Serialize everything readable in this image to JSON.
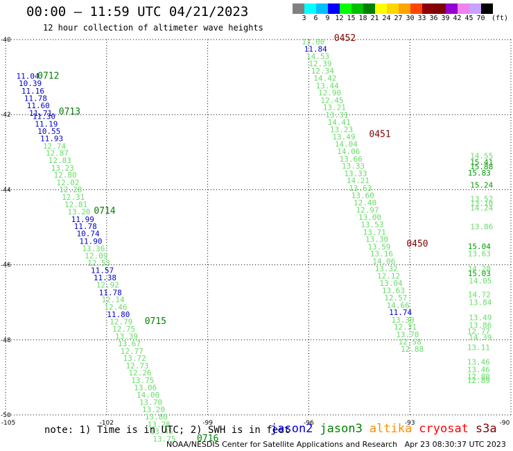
{
  "header": {
    "title": "00:00 — 11:59 UTC 04/21/2023",
    "subtitle": "12 hour collection of altimeter wave heights"
  },
  "colorbar": {
    "labels": [
      "3",
      "6",
      "9",
      "12",
      "15",
      "18",
      "21",
      "24",
      "27",
      "30",
      "33",
      "36",
      "39",
      "42",
      "45",
      "70"
    ],
    "colors": [
      "#808080",
      "#00ffff",
      "#00bfff",
      "#0000ff",
      "#00ff00",
      "#00c000",
      "#008000",
      "#ffff00",
      "#ffd700",
      "#ffa500",
      "#ff4500",
      "#8b0000",
      "#800000",
      "#9400d3",
      "#ee82ee",
      "#c8a2ff",
      "#000000"
    ],
    "unit": "(ft)"
  },
  "footer": {
    "note": "note: 1) Time is in UTC; 2) SWH is in feet",
    "legend": [
      {
        "label": "jason2",
        "color": "#0000cc"
      },
      {
        "label": "jason3",
        "color": "#008000"
      },
      {
        "label": "altika",
        "color": "#ff8c00"
      },
      {
        "label": "cryosat",
        "color": "#ff0000"
      },
      {
        "label": "s3a",
        "color": "#800000"
      }
    ],
    "credit": "NOAA/NESDIS Center for Satellite Applications and Research   Apr 23 08:30:37 UTC 2023"
  },
  "chart_data": {
    "type": "scatter",
    "xlim": [
      -105,
      -90
    ],
    "ylim": [
      -50,
      -40
    ],
    "x_ticks": [
      "-105",
      "-102",
      "-99",
      "-96",
      "-93",
      "-90"
    ],
    "y_ticks": [
      "-40",
      "-42",
      "-44",
      "-46",
      "-48",
      "-50"
    ],
    "grid": true,
    "series": [
      {
        "name": "jason3",
        "points": [
          {
            "x": -104.68,
            "y": -41.04,
            "v": "11.04",
            "c": "#0000cc"
          },
          {
            "x": -104.61,
            "y": -41.24,
            "v": "10.39",
            "c": "#0000cc"
          },
          {
            "x": -104.53,
            "y": -41.44,
            "v": "11.16",
            "c": "#0000cc"
          },
          {
            "x": -104.45,
            "y": -41.64,
            "v": "11.78",
            "c": "#0000cc"
          },
          {
            "x": -104.37,
            "y": -41.83,
            "v": "11.60",
            "c": "#0000cc"
          },
          {
            "x": -104.3,
            "y": -42.03,
            "v": "11.71",
            "c": "#0000cc"
          },
          {
            "x": -104.2,
            "y": -42.12,
            "v": "11.30",
            "c": "#0000cc"
          },
          {
            "x": -104.13,
            "y": -42.32,
            "v": "11.19",
            "c": "#0000cc"
          },
          {
            "x": -104.05,
            "y": -42.51,
            "v": "10.55",
            "c": "#0000cc"
          },
          {
            "x": -103.97,
            "y": -42.71,
            "v": "11.93",
            "c": "#0000cc"
          },
          {
            "x": -103.89,
            "y": -42.91,
            "v": "12.74",
            "c": "#66dd66"
          },
          {
            "x": -103.81,
            "y": -43.1,
            "v": "12.87",
            "c": "#66dd66"
          },
          {
            "x": -103.73,
            "y": -43.29,
            "v": "12.83",
            "c": "#66dd66"
          },
          {
            "x": -103.65,
            "y": -43.49,
            "v": "13.23",
            "c": "#66dd66"
          },
          {
            "x": -103.57,
            "y": -43.68,
            "v": "12.80",
            "c": "#66dd66"
          },
          {
            "x": -103.49,
            "y": -43.88,
            "v": "12.02",
            "c": "#66dd66"
          },
          {
            "x": -103.41,
            "y": -44.07,
            "v": "12.28",
            "c": "#66dd66"
          },
          {
            "x": -103.33,
            "y": -44.27,
            "v": "12.31",
            "c": "#66dd66"
          },
          {
            "x": -103.25,
            "y": -44.46,
            "v": "12.81",
            "c": "#66dd66"
          },
          {
            "x": -103.16,
            "y": -44.66,
            "v": "13.20",
            "c": "#66dd66"
          },
          {
            "x": -103.05,
            "y": -44.86,
            "v": "11.99",
            "c": "#0000cc"
          },
          {
            "x": -102.97,
            "y": -45.05,
            "v": "11.78",
            "c": "#0000cc"
          },
          {
            "x": -102.89,
            "y": -45.24,
            "v": "10.74",
            "c": "#0000cc"
          },
          {
            "x": -102.81,
            "y": -45.44,
            "v": "11.90",
            "c": "#0000cc"
          },
          {
            "x": -102.73,
            "y": -45.64,
            "v": "13.36",
            "c": "#66dd66"
          },
          {
            "x": -102.65,
            "y": -45.83,
            "v": "12.09",
            "c": "#66dd66"
          },
          {
            "x": -102.57,
            "y": -46.03,
            "v": "12.53",
            "c": "#66dd66"
          },
          {
            "x": -102.47,
            "y": -46.22,
            "v": "11.57",
            "c": "#0000cc"
          },
          {
            "x": -102.39,
            "y": -46.41,
            "v": "11.38",
            "c": "#0000cc"
          },
          {
            "x": -102.31,
            "y": -46.61,
            "v": "12.92",
            "c": "#66dd66"
          },
          {
            "x": -102.23,
            "y": -46.81,
            "v": "11.78",
            "c": "#0000cc"
          },
          {
            "x": -102.15,
            "y": -47.0,
            "v": "12.14",
            "c": "#66dd66"
          },
          {
            "x": -102.07,
            "y": -47.2,
            "v": "12.46",
            "c": "#66dd66"
          },
          {
            "x": -101.99,
            "y": -47.39,
            "v": "11.80",
            "c": "#0000cc"
          },
          {
            "x": -101.91,
            "y": -47.59,
            "v": "12.79",
            "c": "#66dd66"
          },
          {
            "x": -101.83,
            "y": -47.78,
            "v": "12.75",
            "c": "#66dd66"
          },
          {
            "x": -101.75,
            "y": -47.98,
            "v": "13.39",
            "c": "#66dd66"
          },
          {
            "x": -101.67,
            "y": -48.17,
            "v": "13.67",
            "c": "#66dd66"
          },
          {
            "x": -101.59,
            "y": -48.37,
            "v": "12.77",
            "c": "#66dd66"
          },
          {
            "x": -101.51,
            "y": -48.56,
            "v": "13.72",
            "c": "#66dd66"
          },
          {
            "x": -101.43,
            "y": -48.76,
            "v": "12.73",
            "c": "#66dd66"
          },
          {
            "x": -101.35,
            "y": -48.95,
            "v": "12.26",
            "c": "#66dd66"
          },
          {
            "x": -101.27,
            "y": -49.15,
            "v": "13.75",
            "c": "#66dd66"
          },
          {
            "x": -101.19,
            "y": -49.34,
            "v": "13.06",
            "c": "#66dd66"
          },
          {
            "x": -101.11,
            "y": -49.54,
            "v": "14.00",
            "c": "#66dd66"
          },
          {
            "x": -101.03,
            "y": -49.73,
            "v": "13.70",
            "c": "#66dd66"
          },
          {
            "x": -100.95,
            "y": -49.93,
            "v": "13.20",
            "c": "#66dd66"
          },
          {
            "x": -100.87,
            "y": -50.12,
            "v": "13.80",
            "c": "#66dd66"
          },
          {
            "x": -100.79,
            "y": -50.32,
            "v": "13.28",
            "c": "#66dd66"
          },
          {
            "x": -100.71,
            "y": -50.51,
            "v": "13.45",
            "c": "#66dd66"
          },
          {
            "x": -100.63,
            "y": -50.71,
            "v": "13.75",
            "c": "#66dd66"
          }
        ]
      },
      {
        "name": "s3a",
        "points": [
          {
            "x": -96.21,
            "y": -40.13,
            "v": "13.00",
            "c": "#66dd66"
          },
          {
            "x": -96.14,
            "y": -40.32,
            "v": "11.84",
            "c": "#0000cc"
          },
          {
            "x": -96.07,
            "y": -40.52,
            "v": "14.53",
            "c": "#66dd66"
          },
          {
            "x": -96.0,
            "y": -40.71,
            "v": "12.39",
            "c": "#66dd66"
          },
          {
            "x": -95.93,
            "y": -40.91,
            "v": "12.34",
            "c": "#66dd66"
          },
          {
            "x": -95.86,
            "y": -41.1,
            "v": "14.42",
            "c": "#66dd66"
          },
          {
            "x": -95.79,
            "y": -41.3,
            "v": "13.44",
            "c": "#66dd66"
          },
          {
            "x": -95.72,
            "y": -41.49,
            "v": "12.90",
            "c": "#66dd66"
          },
          {
            "x": -95.65,
            "y": -41.69,
            "v": "12.45",
            "c": "#66dd66"
          },
          {
            "x": -95.58,
            "y": -41.88,
            "v": "13.21",
            "c": "#66dd66"
          },
          {
            "x": -95.51,
            "y": -42.08,
            "v": "13.31",
            "c": "#66dd66"
          },
          {
            "x": -95.44,
            "y": -42.27,
            "v": "14.41",
            "c": "#66dd66"
          },
          {
            "x": -95.37,
            "y": -42.47,
            "v": "13.23",
            "c": "#66dd66"
          },
          {
            "x": -95.3,
            "y": -42.66,
            "v": "13.49",
            "c": "#66dd66"
          },
          {
            "x": -95.23,
            "y": -42.86,
            "v": "14.04",
            "c": "#66dd66"
          },
          {
            "x": -95.16,
            "y": -43.05,
            "v": "14.06",
            "c": "#66dd66"
          },
          {
            "x": -95.09,
            "y": -43.25,
            "v": "13.66",
            "c": "#66dd66"
          },
          {
            "x": -95.02,
            "y": -43.44,
            "v": "13.33",
            "c": "#66dd66"
          },
          {
            "x": -94.95,
            "y": -43.64,
            "v": "13.33",
            "c": "#66dd66"
          },
          {
            "x": -94.88,
            "y": -43.83,
            "v": "14.21",
            "c": "#66dd66"
          },
          {
            "x": -94.81,
            "y": -44.03,
            "v": "13.63",
            "c": "#66dd66"
          },
          {
            "x": -94.74,
            "y": -44.22,
            "v": "13.60",
            "c": "#66dd66"
          },
          {
            "x": -94.67,
            "y": -44.42,
            "v": "12.40",
            "c": "#66dd66"
          },
          {
            "x": -94.6,
            "y": -44.61,
            "v": "12.97",
            "c": "#66dd66"
          },
          {
            "x": -94.53,
            "y": -44.81,
            "v": "13.00",
            "c": "#66dd66"
          },
          {
            "x": -94.46,
            "y": -45.0,
            "v": "13.53",
            "c": "#66dd66"
          },
          {
            "x": -94.39,
            "y": -45.2,
            "v": "13.71",
            "c": "#66dd66"
          },
          {
            "x": -94.32,
            "y": -45.39,
            "v": "13.30",
            "c": "#66dd66"
          },
          {
            "x": -94.25,
            "y": -45.59,
            "v": "13.59",
            "c": "#66dd66"
          },
          {
            "x": -94.18,
            "y": -45.78,
            "v": "13.16",
            "c": "#66dd66"
          },
          {
            "x": -94.11,
            "y": -45.98,
            "v": "14.06",
            "c": "#66dd66"
          },
          {
            "x": -94.04,
            "y": -46.17,
            "v": "13.32",
            "c": "#66dd66"
          },
          {
            "x": -93.97,
            "y": -46.37,
            "v": "12.12",
            "c": "#66dd66"
          },
          {
            "x": -93.9,
            "y": -46.56,
            "v": "13.04",
            "c": "#66dd66"
          },
          {
            "x": -93.83,
            "y": -46.76,
            "v": "13.63",
            "c": "#66dd66"
          },
          {
            "x": -93.76,
            "y": -46.95,
            "v": "12.57",
            "c": "#66dd66"
          },
          {
            "x": -93.69,
            "y": -47.15,
            "v": "14.66",
            "c": "#66dd66"
          },
          {
            "x": -93.62,
            "y": -47.34,
            "v": "11.74",
            "c": "#0000cc"
          },
          {
            "x": -93.55,
            "y": -47.54,
            "v": "13.30",
            "c": "#66dd66"
          },
          {
            "x": -93.48,
            "y": -47.73,
            "v": "12.31",
            "c": "#66dd66"
          },
          {
            "x": -93.41,
            "y": -47.93,
            "v": "13.70",
            "c": "#66dd66"
          },
          {
            "x": -93.34,
            "y": -48.12,
            "v": "12.58",
            "c": "#66dd66"
          },
          {
            "x": -93.27,
            "y": -48.32,
            "v": "12.88",
            "c": "#66dd66"
          }
        ]
      },
      {
        "name": "right-pass",
        "points": [
          {
            "x": -91.28,
            "y": -45.58,
            "v": "15.04",
            "c": "#00a000"
          },
          {
            "x": -91.28,
            "y": -45.78,
            "v": "13.63",
            "c": "#66dd66"
          },
          {
            "x": -91.28,
            "y": -46.17,
            "v": "14.28",
            "c": "#66dd66"
          },
          {
            "x": -91.28,
            "y": -46.3,
            "v": "15.03",
            "c": "#00a000"
          },
          {
            "x": -91.25,
            "y": -46.5,
            "v": "14.05",
            "c": "#66dd66"
          },
          {
            "x": -91.28,
            "y": -46.87,
            "v": "14.72",
            "c": "#66dd66"
          },
          {
            "x": -91.25,
            "y": -47.07,
            "v": "13.84",
            "c": "#66dd66"
          },
          {
            "x": -91.25,
            "y": -47.48,
            "v": "13.49",
            "c": "#66dd66"
          },
          {
            "x": -91.25,
            "y": -47.68,
            "v": "13.86",
            "c": "#66dd66"
          },
          {
            "x": -91.3,
            "y": -47.85,
            "v": "12.77",
            "c": "#66dd66"
          },
          {
            "x": -91.25,
            "y": -48.0,
            "v": "14.39",
            "c": "#66dd66"
          },
          {
            "x": -91.3,
            "y": -48.27,
            "v": "13.11",
            "c": "#66dd66"
          },
          {
            "x": -91.3,
            "y": -48.66,
            "v": "13.46",
            "c": "#66dd66"
          },
          {
            "x": -91.3,
            "y": -48.86,
            "v": "13.46",
            "c": "#66dd66"
          },
          {
            "x": -91.3,
            "y": -49.05,
            "v": "12.80",
            "c": "#66dd66"
          },
          {
            "x": -91.3,
            "y": -49.15,
            "v": "12.89",
            "c": "#66dd66"
          },
          {
            "x": -91.21,
            "y": -45.06,
            "v": "13.86",
            "c": "#66dd66"
          },
          {
            "x": -91.21,
            "y": -44.32,
            "v": "13.52",
            "c": "#66dd66"
          },
          {
            "x": -91.21,
            "y": -44.44,
            "v": "13.10",
            "c": "#66dd66"
          },
          {
            "x": -91.21,
            "y": -44.56,
            "v": "14.24",
            "c": "#66dd66"
          },
          {
            "x": -91.21,
            "y": -43.95,
            "v": "15.24",
            "c": "#00a000"
          },
          {
            "x": -91.28,
            "y": -43.62,
            "v": "15.83",
            "c": "#00a000"
          },
          {
            "x": -91.21,
            "y": -43.17,
            "v": "14.55",
            "c": "#66dd66"
          },
          {
            "x": -91.21,
            "y": -43.34,
            "v": "15.41",
            "c": "#00a000"
          },
          {
            "x": -91.21,
            "y": -43.46,
            "v": "15.88",
            "c": "#00a000"
          }
        ]
      }
    ],
    "pass_labels": [
      {
        "x": -104.05,
        "y": -41.04,
        "text": "0712",
        "c": "#008000"
      },
      {
        "x": -103.42,
        "y": -42.0,
        "text": "0713",
        "c": "#008000"
      },
      {
        "x": -102.38,
        "y": -44.64,
        "text": "0714",
        "c": "#008000"
      },
      {
        "x": -100.87,
        "y": -47.58,
        "text": "0715",
        "c": "#008000"
      },
      {
        "x": -99.32,
        "y": -50.7,
        "text": "0716",
        "c": "#008000"
      },
      {
        "x": -95.25,
        "y": -40.04,
        "text": "0452",
        "c": "#800000"
      },
      {
        "x": -94.21,
        "y": -42.6,
        "text": "0451",
        "c": "#800000"
      },
      {
        "x": -93.1,
        "y": -45.52,
        "text": "0450",
        "c": "#800000"
      }
    ]
  }
}
